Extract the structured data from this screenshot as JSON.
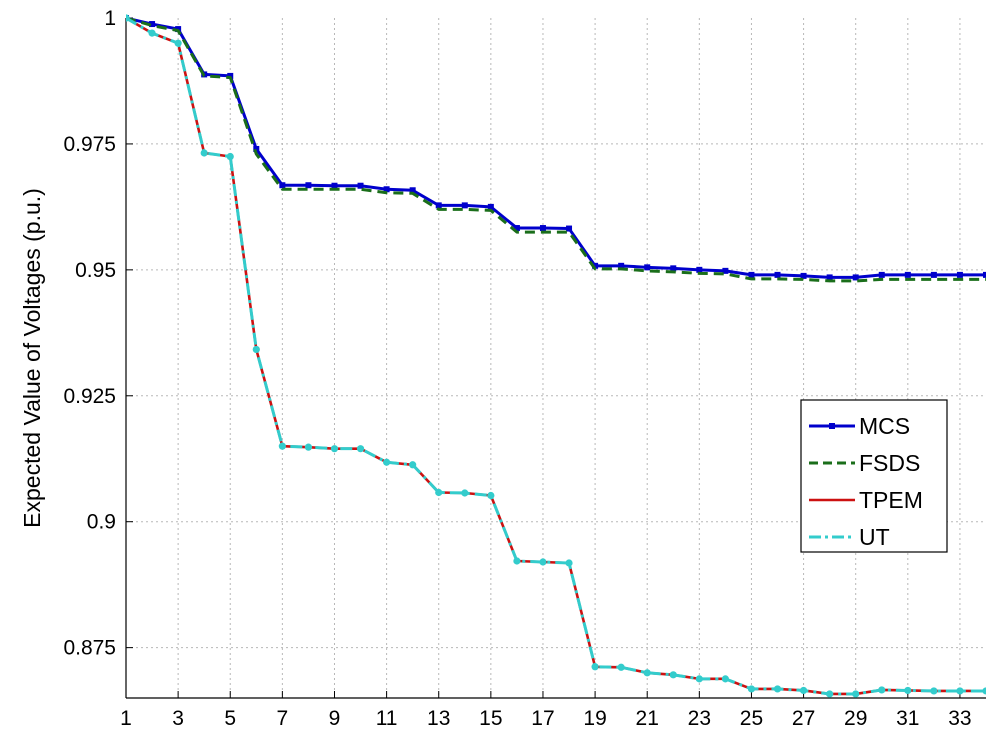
{
  "chart_data": {
    "type": "line",
    "title": "",
    "xlabel": "",
    "ylabel": "Expected Value of Voltages (p.u.)",
    "xlim": [
      1,
      34
    ],
    "ylim": [
      0.865,
      1
    ],
    "xticks": [
      1,
      3,
      5,
      7,
      9,
      11,
      13,
      15,
      17,
      19,
      21,
      23,
      25,
      27,
      29,
      31,
      33
    ],
    "yticks": [
      0.875,
      0.9,
      0.925,
      0.95,
      0.975,
      1
    ],
    "ytick_labels": [
      "0.875",
      "0.9",
      "0.925",
      "0.95",
      "0.975",
      "1"
    ],
    "grid": true,
    "legend_position": "right",
    "x": [
      1,
      2,
      3,
      4,
      5,
      6,
      7,
      8,
      9,
      10,
      11,
      12,
      13,
      14,
      15,
      16,
      17,
      18,
      19,
      20,
      21,
      22,
      23,
      24,
      25,
      26,
      27,
      28,
      29,
      30,
      31,
      32,
      33,
      34
    ],
    "series": [
      {
        "name": "MCS",
        "color": "#0000cc",
        "style": "solid-square-markers",
        "values": [
          1.0,
          0.9988,
          0.9978,
          0.9888,
          0.9885,
          0.974,
          0.9668,
          0.9668,
          0.9667,
          0.9667,
          0.966,
          0.9658,
          0.9628,
          0.9628,
          0.9625,
          0.9583,
          0.9583,
          0.9582,
          0.9508,
          0.9508,
          0.9505,
          0.9503,
          0.95,
          0.9498,
          0.949,
          0.949,
          0.9488,
          0.9485,
          0.9485,
          0.949,
          0.949,
          0.949,
          0.949,
          0.949
        ]
      },
      {
        "name": "FSDS",
        "color": "#1a6e1a",
        "style": "dashed",
        "values": [
          1.0,
          0.9985,
          0.9975,
          0.9885,
          0.9882,
          0.973,
          0.966,
          0.966,
          0.966,
          0.966,
          0.9653,
          0.9652,
          0.962,
          0.962,
          0.9618,
          0.9575,
          0.9575,
          0.9575,
          0.9502,
          0.9502,
          0.9498,
          0.9496,
          0.9493,
          0.9492,
          0.9482,
          0.9482,
          0.9481,
          0.9478,
          0.9478,
          0.9481,
          0.9481,
          0.9481,
          0.9481,
          0.9481
        ]
      },
      {
        "name": "TPEM",
        "color": "#cc1111",
        "style": "solid",
        "values": [
          1.0,
          0.997,
          0.995,
          0.9732,
          0.9725,
          0.9342,
          0.915,
          0.9148,
          0.9145,
          0.9145,
          0.9118,
          0.9113,
          0.9058,
          0.9057,
          0.9052,
          0.8922,
          0.892,
          0.8918,
          0.8712,
          0.8711,
          0.87,
          0.8696,
          0.8688,
          0.8688,
          0.8668,
          0.8668,
          0.8665,
          0.8658,
          0.8658,
          0.8666,
          0.8665,
          0.8664,
          0.8664,
          0.8664
        ]
      },
      {
        "name": "UT",
        "color": "#33cccc",
        "style": "dashdot-circle-markers",
        "values": [
          1.0,
          0.997,
          0.995,
          0.9732,
          0.9725,
          0.9342,
          0.915,
          0.9148,
          0.9145,
          0.9145,
          0.9118,
          0.9113,
          0.9058,
          0.9057,
          0.9052,
          0.8922,
          0.892,
          0.8918,
          0.8712,
          0.8711,
          0.87,
          0.8696,
          0.8688,
          0.8688,
          0.8668,
          0.8668,
          0.8665,
          0.8658,
          0.8658,
          0.8666,
          0.8665,
          0.8664,
          0.8664,
          0.8664
        ]
      }
    ]
  }
}
